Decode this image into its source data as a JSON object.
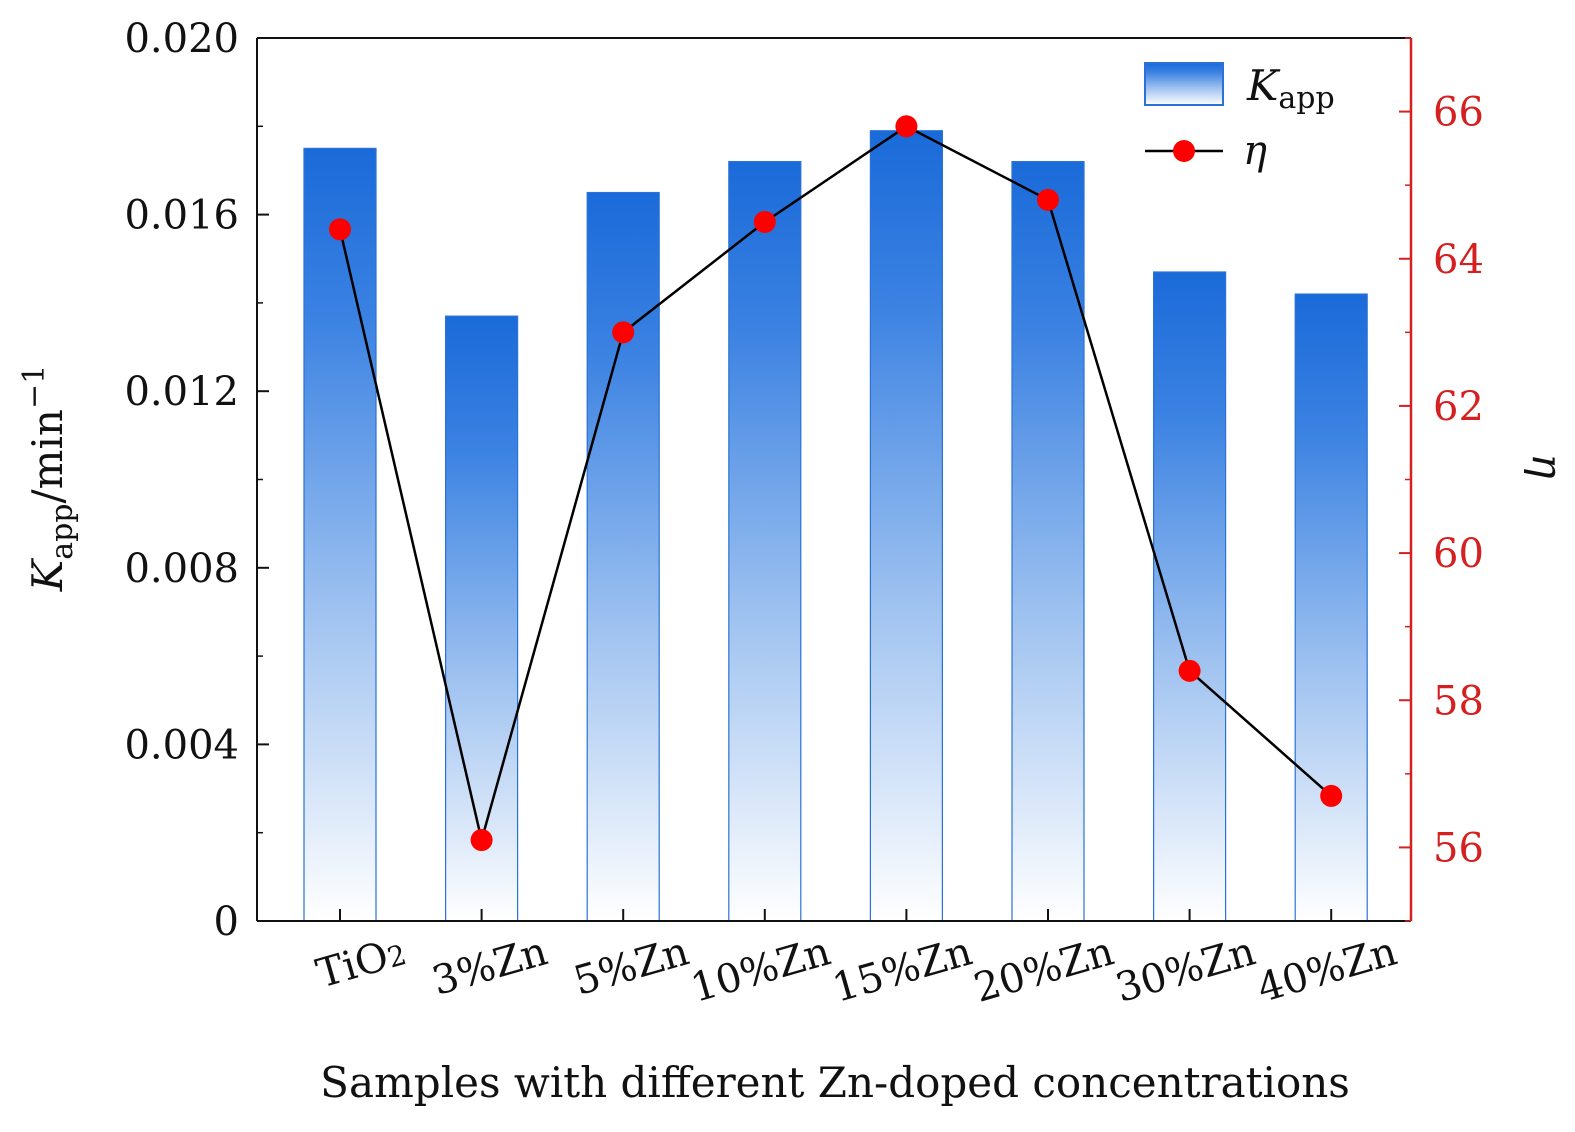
{
  "chart_data": {
    "type": "bar+line",
    "categories": [
      "TiO2",
      "3%Zn",
      "5%Zn",
      "10%Zn",
      "15%Zn",
      "20%Zn",
      "30%Zn",
      "40%Zn"
    ],
    "category_labels": [
      {
        "main": "TiO",
        "sub": "2"
      },
      {
        "main": "3%Zn",
        "sub": ""
      },
      {
        "main": "5%Zn",
        "sub": ""
      },
      {
        "main": "10%Zn",
        "sub": ""
      },
      {
        "main": "15%Zn",
        "sub": ""
      },
      {
        "main": "20%Zn",
        "sub": ""
      },
      {
        "main": "30%Zn",
        "sub": ""
      },
      {
        "main": "40%Zn",
        "sub": ""
      }
    ],
    "series": [
      {
        "name": "K_app",
        "axis": "left",
        "kind": "bar",
        "values": [
          0.0175,
          0.0137,
          0.0165,
          0.0172,
          0.0179,
          0.0172,
          0.0147,
          0.0142
        ]
      },
      {
        "name": "η",
        "axis": "right",
        "kind": "line",
        "values": [
          64.4,
          56.1,
          63.0,
          64.5,
          65.8,
          64.8,
          58.4,
          56.7
        ]
      }
    ],
    "left_axis": {
      "label_main": "K",
      "label_sub": "app",
      "label_rest": "/min",
      "label_sup": "−1",
      "ylim": [
        0,
        0.02
      ],
      "ticks": [
        0,
        0.004,
        0.008,
        0.012,
        0.016,
        0.02
      ],
      "tick_labels": [
        "0",
        "0.004",
        "0.008",
        "0.012",
        "0.016",
        "0.020"
      ]
    },
    "right_axis": {
      "label": "η",
      "ylim": [
        55,
        67
      ],
      "ticks": [
        56,
        58,
        60,
        62,
        64,
        66
      ],
      "tick_labels": [
        "56",
        "58",
        "60",
        "62",
        "64",
        "66"
      ]
    },
    "xlabel": "Samples with different Zn-doped concentrations",
    "legend": {
      "position": "top-right",
      "bar_label_main": "K",
      "bar_label_sub": "app",
      "line_label": "η"
    },
    "colors": {
      "bar_top": "#1a6ad9",
      "bar_bottom": "#ffffff",
      "bar_edge": "#2a72d6",
      "line": "#000000",
      "marker": "#ff0000",
      "right_axis": "#d42020",
      "left_axis": "#111111"
    }
  }
}
